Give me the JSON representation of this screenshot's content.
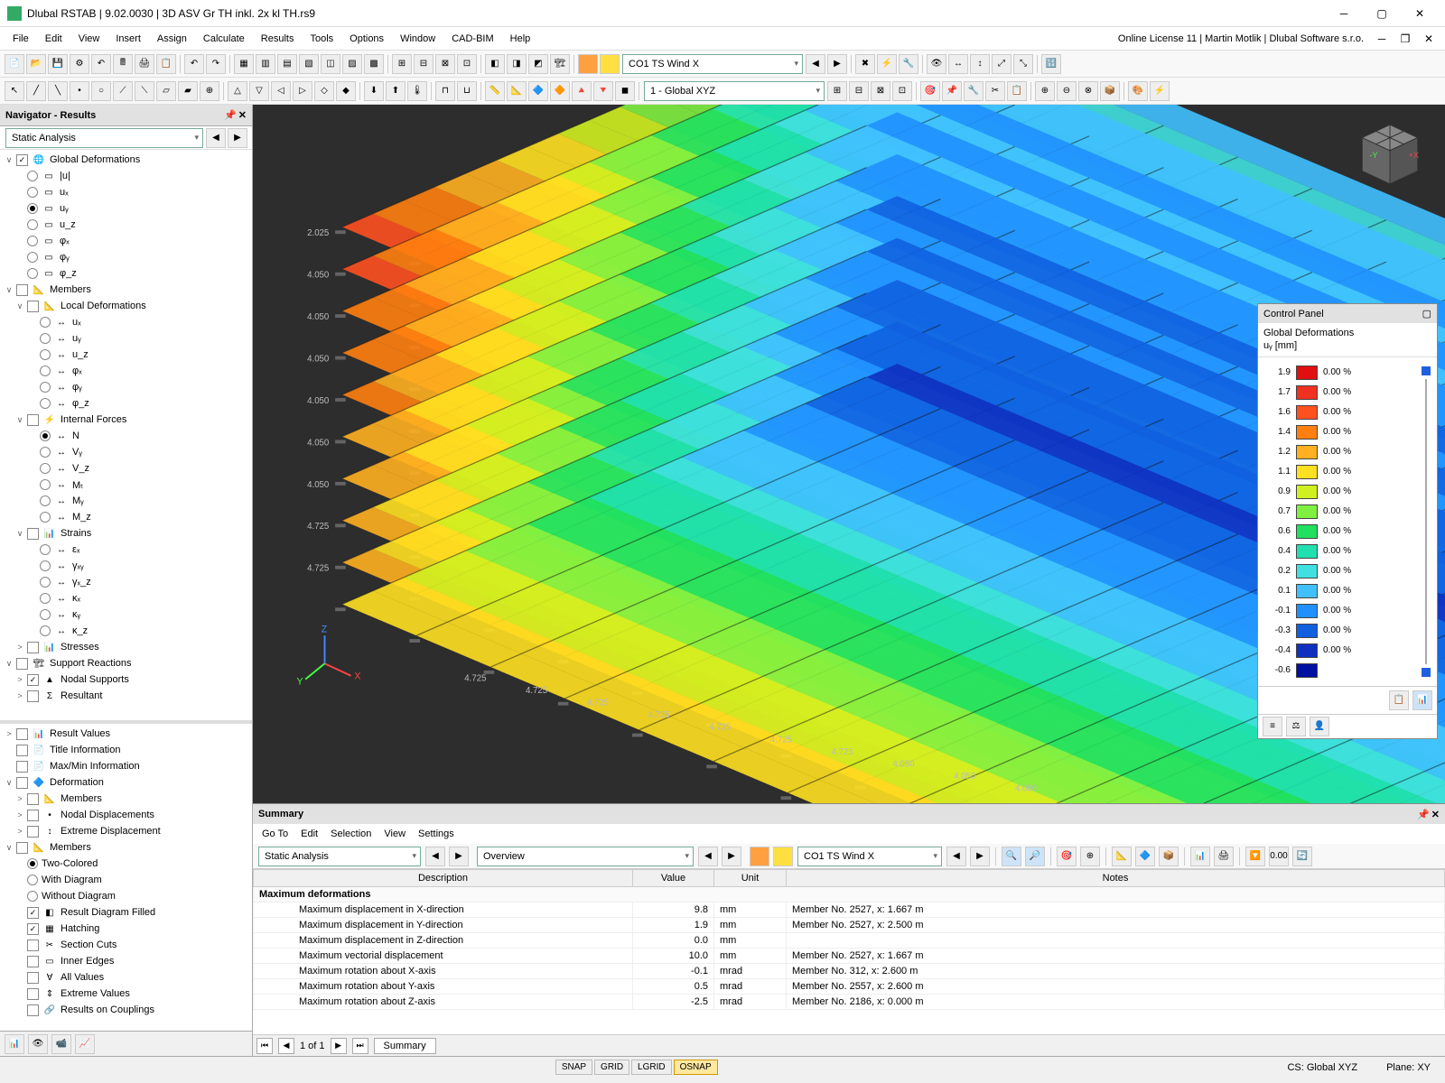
{
  "titlebar": {
    "title": "Dlubal RSTAB | 9.02.0030 | 3D ASV Gr TH inkl. 2x kl TH.rs9"
  },
  "menubar": {
    "items": [
      "File",
      "Edit",
      "View",
      "Insert",
      "Assign",
      "Calculate",
      "Results",
      "Tools",
      "Options",
      "Window",
      "CAD-BIM",
      "Help"
    ],
    "license": "Online License 11 | Martin Motlik | Dlubal Software s.r.o."
  },
  "toolbar1": {
    "co_label": "CO1    TS Wind X"
  },
  "toolbar2": {
    "global": "1 - Global XYZ"
  },
  "navigator": {
    "title": "Navigator - Results",
    "combo": "Static Analysis",
    "tree1": [
      {
        "type": "group",
        "tw": "∨",
        "cb": true,
        "icon": "🌐",
        "label": "Global Deformations",
        "indent": 0
      },
      {
        "type": "radio",
        "sel": false,
        "icon": "▭",
        "label": "|u|",
        "indent": 1
      },
      {
        "type": "radio",
        "sel": false,
        "icon": "▭",
        "label": "uₓ",
        "indent": 1
      },
      {
        "type": "radio",
        "sel": true,
        "icon": "▭",
        "label": "uᵧ",
        "indent": 1
      },
      {
        "type": "radio",
        "sel": false,
        "icon": "▭",
        "label": "u_z",
        "indent": 1
      },
      {
        "type": "radio",
        "sel": false,
        "icon": "▭",
        "label": "φₓ",
        "indent": 1
      },
      {
        "type": "radio",
        "sel": false,
        "icon": "▭",
        "label": "φᵧ",
        "indent": 1
      },
      {
        "type": "radio",
        "sel": false,
        "icon": "▭",
        "label": "φ_z",
        "indent": 1
      },
      {
        "type": "group",
        "tw": "∨",
        "cb": false,
        "icon": "📐",
        "label": "Members",
        "indent": 0
      },
      {
        "type": "group",
        "tw": "∨",
        "cb": false,
        "icon": "📐",
        "label": "Local Deformations",
        "indent": 1
      },
      {
        "type": "radio",
        "sel": false,
        "icon": "↔",
        "label": "uₓ",
        "indent": 2
      },
      {
        "type": "radio",
        "sel": false,
        "icon": "↔",
        "label": "uᵧ",
        "indent": 2
      },
      {
        "type": "radio",
        "sel": false,
        "icon": "↔",
        "label": "u_z",
        "indent": 2
      },
      {
        "type": "radio",
        "sel": false,
        "icon": "↔",
        "label": "φₓ",
        "indent": 2
      },
      {
        "type": "radio",
        "sel": false,
        "icon": "↔",
        "label": "φᵧ",
        "indent": 2
      },
      {
        "type": "radio",
        "sel": false,
        "icon": "↔",
        "label": "φ_z",
        "indent": 2
      },
      {
        "type": "group",
        "tw": "∨",
        "cb": false,
        "icon": "⚡",
        "label": "Internal Forces",
        "indent": 1
      },
      {
        "type": "radio",
        "sel": true,
        "icon": "↔",
        "label": "N",
        "indent": 2
      },
      {
        "type": "radio",
        "sel": false,
        "icon": "↔",
        "label": "Vᵧ",
        "indent": 2
      },
      {
        "type": "radio",
        "sel": false,
        "icon": "↔",
        "label": "V_z",
        "indent": 2
      },
      {
        "type": "radio",
        "sel": false,
        "icon": "↔",
        "label": "Mₜ",
        "indent": 2
      },
      {
        "type": "radio",
        "sel": false,
        "icon": "↔",
        "label": "Mᵧ",
        "indent": 2
      },
      {
        "type": "radio",
        "sel": false,
        "icon": "↔",
        "label": "M_z",
        "indent": 2
      },
      {
        "type": "group",
        "tw": "∨",
        "cb": false,
        "icon": "📊",
        "label": "Strains",
        "indent": 1
      },
      {
        "type": "radio",
        "sel": false,
        "icon": "↔",
        "label": "εₓ",
        "indent": 2
      },
      {
        "type": "radio",
        "sel": false,
        "icon": "↔",
        "label": "γₓᵧ",
        "indent": 2
      },
      {
        "type": "radio",
        "sel": false,
        "icon": "↔",
        "label": "γₓ_z",
        "indent": 2
      },
      {
        "type": "radio",
        "sel": false,
        "icon": "↔",
        "label": "κₓ",
        "indent": 2
      },
      {
        "type": "radio",
        "sel": false,
        "icon": "↔",
        "label": "κᵧ",
        "indent": 2
      },
      {
        "type": "radio",
        "sel": false,
        "icon": "↔",
        "label": "κ_z",
        "indent": 2
      },
      {
        "type": "group",
        "tw": ">",
        "cb": false,
        "icon": "📊",
        "label": "Stresses",
        "indent": 1
      },
      {
        "type": "group",
        "tw": "∨",
        "cb": false,
        "icon": "🏗",
        "label": "Support Reactions",
        "indent": 0
      },
      {
        "type": "group",
        "tw": ">",
        "cb": true,
        "icon": "▲",
        "label": "Nodal Supports",
        "indent": 1
      },
      {
        "type": "group",
        "tw": ">",
        "cb": false,
        "icon": "Σ",
        "label": "Resultant",
        "indent": 1
      }
    ],
    "tree2": [
      {
        "type": "group",
        "tw": ">",
        "cb": false,
        "icon": "📊",
        "label": "Result Values",
        "indent": 0
      },
      {
        "type": "item",
        "cb": false,
        "icon": "📄",
        "label": "Title Information",
        "indent": 0
      },
      {
        "type": "item",
        "cb": false,
        "icon": "📄",
        "label": "Max/Min Information",
        "indent": 0
      },
      {
        "type": "group",
        "tw": "∨",
        "cb": false,
        "icon": "🔷",
        "label": "Deformation",
        "indent": 0
      },
      {
        "type": "item",
        "tw": ">",
        "cb": false,
        "icon": "📐",
        "label": "Members",
        "indent": 1
      },
      {
        "type": "item",
        "tw": ">",
        "cb": false,
        "icon": "•",
        "label": "Nodal Displacements",
        "indent": 1
      },
      {
        "type": "item",
        "tw": ">",
        "cb": false,
        "icon": "↕",
        "label": "Extreme Displacement",
        "indent": 1
      },
      {
        "type": "group",
        "tw": "∨",
        "cb": false,
        "icon": "📐",
        "label": "Members",
        "indent": 0
      },
      {
        "type": "radio",
        "sel": true,
        "label": "Two-Colored",
        "indent": 1
      },
      {
        "type": "radio",
        "sel": false,
        "label": "With Diagram",
        "indent": 1
      },
      {
        "type": "radio",
        "sel": false,
        "label": "Without Diagram",
        "indent": 1
      },
      {
        "type": "item",
        "cb": true,
        "icon": "◧",
        "label": "Result Diagram Filled",
        "indent": 1
      },
      {
        "type": "item",
        "cb": true,
        "icon": "▦",
        "label": "Hatching",
        "indent": 1
      },
      {
        "type": "item",
        "cb": false,
        "icon": "✂",
        "label": "Section Cuts",
        "indent": 1
      },
      {
        "type": "item",
        "cb": false,
        "icon": "▭",
        "label": "Inner Edges",
        "indent": 1
      },
      {
        "type": "item",
        "cb": false,
        "icon": "∀",
        "label": "All Values",
        "indent": 1
      },
      {
        "type": "item",
        "cb": false,
        "icon": "⇕",
        "label": "Extreme Values",
        "indent": 1
      },
      {
        "type": "item",
        "cb": false,
        "icon": "🔗",
        "label": "Results on Couplings",
        "indent": 1
      }
    ]
  },
  "viewport": {
    "floor_labels": [
      "2.025",
      "4.050",
      "4.050",
      "4.050",
      "4.050",
      "4.050",
      "4.050",
      "4.725",
      "4.725"
    ],
    "bottom_labels": [
      "4.725",
      "4.725",
      "4.725",
      "4.725",
      "4.725",
      "4.725",
      "4.725",
      "4.050",
      "4.050",
      "4.050"
    ],
    "axis": {
      "x": "X",
      "y": "Y",
      "z": "Z"
    }
  },
  "control_panel": {
    "header": "Control Panel",
    "title1": "Global Deformations",
    "title2": "uᵧ [mm]",
    "scale": [
      {
        "val": "1.9",
        "color": "#e01010",
        "pct": "0.00 %"
      },
      {
        "val": "1.7",
        "color": "#f03020",
        "pct": "0.00 %"
      },
      {
        "val": "1.6",
        "color": "#ff5020",
        "pct": "0.00 %"
      },
      {
        "val": "1.4",
        "color": "#ff8010",
        "pct": "0.00 %"
      },
      {
        "val": "1.2",
        "color": "#ffb020",
        "pct": "0.00 %"
      },
      {
        "val": "1.1",
        "color": "#ffe020",
        "pct": "0.00 %"
      },
      {
        "val": "0.9",
        "color": "#d0f020",
        "pct": "0.00 %"
      },
      {
        "val": "0.7",
        "color": "#80f040",
        "pct": "0.00 %"
      },
      {
        "val": "0.6",
        "color": "#20e060",
        "pct": "0.00 %"
      },
      {
        "val": "0.4",
        "color": "#20e0b0",
        "pct": "0.00 %"
      },
      {
        "val": "0.2",
        "color": "#40e0e0",
        "pct": "0.00 %"
      },
      {
        "val": "0.1",
        "color": "#40c0ff",
        "pct": "0.00 %"
      },
      {
        "val": "-0.1",
        "color": "#2090ff",
        "pct": "0.00 %"
      },
      {
        "val": "-0.3",
        "color": "#1060e0",
        "pct": "0.00 %"
      },
      {
        "val": "-0.4",
        "color": "#1030c0",
        "pct": "0.00 %"
      },
      {
        "val": "-0.6",
        "color": "#0010a0",
        "pct": ""
      }
    ]
  },
  "summary": {
    "title": "Summary",
    "menu": [
      "Go To",
      "Edit",
      "Selection",
      "View",
      "Settings"
    ],
    "combo1": "Static Analysis",
    "combo2": "Overview",
    "combo3": "CO1    TS Wind X",
    "columns": [
      "Description",
      "Value",
      "Unit",
      "Notes"
    ],
    "section": "Maximum deformations",
    "rows": [
      [
        "Maximum displacement in X-direction",
        "9.8",
        "mm",
        "Member No. 2527, x: 1.667 m"
      ],
      [
        "Maximum displacement in Y-direction",
        "1.9",
        "mm",
        "Member No. 2527, x: 2.500 m"
      ],
      [
        "Maximum displacement in Z-direction",
        "0.0",
        "mm",
        ""
      ],
      [
        "Maximum vectorial displacement",
        "10.0",
        "mm",
        "Member No. 2527, x: 1.667 m"
      ],
      [
        "Maximum rotation about X-axis",
        "-0.1",
        "mrad",
        "Member No. 312, x: 2.600 m"
      ],
      [
        "Maximum rotation about Y-axis",
        "0.5",
        "mrad",
        "Member No. 2557, x: 2.600 m"
      ],
      [
        "Maximum rotation about Z-axis",
        "-2.5",
        "mrad",
        "Member No. 2186, x: 0.000 m"
      ]
    ],
    "pager": {
      "text": "1 of 1",
      "tab": "Summary"
    }
  },
  "statusbar": {
    "buttons": [
      {
        "label": "SNAP",
        "active": false
      },
      {
        "label": "GRID",
        "active": false
      },
      {
        "label": "LGRID",
        "active": false
      },
      {
        "label": "OSNAP",
        "active": true
      }
    ],
    "cs": "CS: Global XYZ",
    "plane": "Plane: XY"
  }
}
